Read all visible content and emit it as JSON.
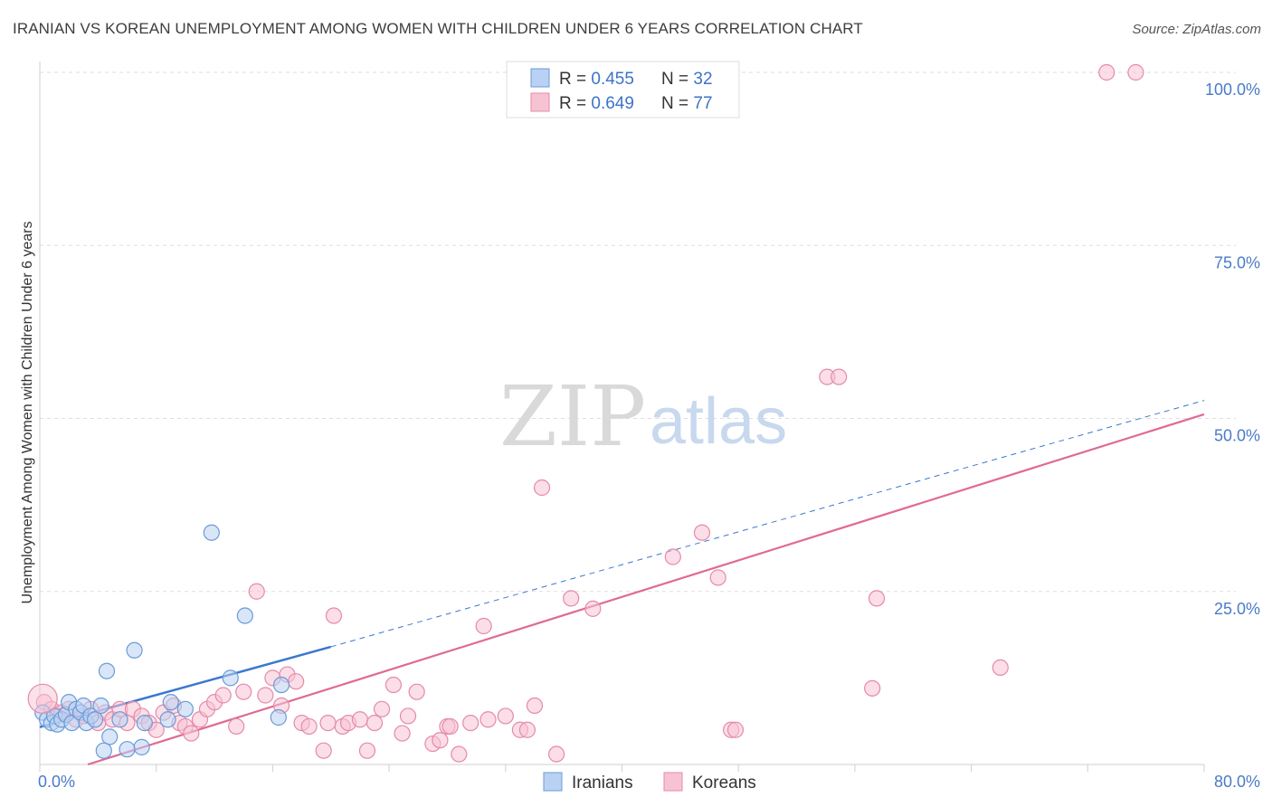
{
  "title": "IRANIAN VS KOREAN UNEMPLOYMENT AMONG WOMEN WITH CHILDREN UNDER 6 YEARS CORRELATION CHART",
  "source": "Source: ZipAtlas.com",
  "watermark": {
    "zip": "ZIP",
    "atlas": "atlas"
  },
  "colors": {
    "iranian_fill": "#b9d1f3",
    "iranian_stroke": "#6b9ad8",
    "iranian_line": "#3a78cf",
    "korean_fill": "#f7c3d3",
    "korean_stroke": "#e58aa8",
    "korean_line": "#e06a94",
    "grid": "#dddddd",
    "tick_text": "#4a7bc8"
  },
  "legend": {
    "rows": [
      {
        "r_label": "R = ",
        "r_value": "0.455",
        "n_label": "N = ",
        "n_value": "32"
      },
      {
        "r_label": "R = ",
        "r_value": "0.649",
        "n_label": "N = ",
        "n_value": "77"
      }
    ]
  },
  "bottom_legend": [
    "Iranians",
    "Koreans"
  ],
  "chart_data": {
    "type": "scatter",
    "title": "IRANIAN VS KOREAN UNEMPLOYMENT AMONG WOMEN WITH CHILDREN UNDER 6 YEARS CORRELATION CHART",
    "xlabel": "",
    "ylabel": "Unemployment Among Women with Children Under 6 years",
    "xlim": [
      0,
      80
    ],
    "ylim": [
      0,
      100
    ],
    "x_tick_labels": [
      "0.0%",
      "80.0%"
    ],
    "y_ticks": [
      25,
      50,
      75,
      100
    ],
    "y_tick_labels": [
      "25.0%",
      "50.0%",
      "75.0%",
      "100.0%"
    ],
    "grid": true,
    "series": [
      {
        "name": "Iranians",
        "r": 0.455,
        "n": 32,
        "trend": {
          "x0": 0,
          "y0": 5.4,
          "x1": 20,
          "y1": 17.0,
          "dashed_to_x": 80,
          "dashed_to_y": 52.6
        },
        "points": [
          [
            0.2,
            7.5
          ],
          [
            0.5,
            6.5
          ],
          [
            0.8,
            6.0
          ],
          [
            1.0,
            7.0
          ],
          [
            1.2,
            5.8
          ],
          [
            1.5,
            6.5
          ],
          [
            1.8,
            7.2
          ],
          [
            2.0,
            9.0
          ],
          [
            2.2,
            6.0
          ],
          [
            2.5,
            8.0
          ],
          [
            2.8,
            7.5
          ],
          [
            3.0,
            8.5
          ],
          [
            3.2,
            6.0
          ],
          [
            3.5,
            7.0
          ],
          [
            3.8,
            6.5
          ],
          [
            4.2,
            8.5
          ],
          [
            4.6,
            13.5
          ],
          [
            4.8,
            4.0
          ],
          [
            5.5,
            6.5
          ],
          [
            6.5,
            16.5
          ],
          [
            7.0,
            2.5
          ],
          [
            7.2,
            6.0
          ],
          [
            8.8,
            6.5
          ],
          [
            9.0,
            9.0
          ],
          [
            10.0,
            8.0
          ],
          [
            11.8,
            33.5
          ],
          [
            13.1,
            12.5
          ],
          [
            14.1,
            21.5
          ],
          [
            16.4,
            6.8
          ],
          [
            16.6,
            11.5
          ],
          [
            6.0,
            2.2
          ],
          [
            4.4,
            2.0
          ]
        ]
      },
      {
        "name": "Koreans",
        "r": 0.649,
        "n": 77,
        "trend": {
          "x0": 3.3,
          "y0": 0,
          "x1": 80,
          "y1": 50.6
        },
        "points": [
          [
            0.3,
            9.0
          ],
          [
            0.8,
            8.0
          ],
          [
            1.2,
            7.0
          ],
          [
            1.5,
            7.5
          ],
          [
            2.0,
            8.0
          ],
          [
            2.5,
            6.5
          ],
          [
            3.0,
            7.0
          ],
          [
            3.5,
            8.0
          ],
          [
            4.0,
            6.0
          ],
          [
            4.5,
            7.5
          ],
          [
            5.0,
            6.5
          ],
          [
            5.5,
            8.0
          ],
          [
            6.0,
            6.0
          ],
          [
            6.4,
            8.0
          ],
          [
            7.0,
            7.0
          ],
          [
            7.5,
            6.0
          ],
          [
            8.0,
            5.0
          ],
          [
            8.5,
            7.5
          ],
          [
            9.2,
            8.5
          ],
          [
            9.6,
            6.0
          ],
          [
            10.0,
            5.5
          ],
          [
            10.4,
            4.5
          ],
          [
            11.0,
            6.5
          ],
          [
            11.5,
            8.0
          ],
          [
            12.0,
            9.0
          ],
          [
            12.6,
            10.0
          ],
          [
            13.5,
            5.5
          ],
          [
            14.0,
            10.5
          ],
          [
            14.9,
            25.0
          ],
          [
            15.5,
            10.0
          ],
          [
            16.0,
            12.5
          ],
          [
            16.6,
            8.5
          ],
          [
            17.0,
            13.0
          ],
          [
            17.6,
            12.0
          ],
          [
            18.0,
            6.0
          ],
          [
            18.5,
            5.5
          ],
          [
            19.5,
            2.0
          ],
          [
            20.2,
            21.5
          ],
          [
            20.8,
            5.5
          ],
          [
            21.2,
            6.0
          ],
          [
            22.0,
            6.5
          ],
          [
            22.5,
            2.0
          ],
          [
            23.0,
            6.0
          ],
          [
            23.5,
            8.0
          ],
          [
            24.3,
            11.5
          ],
          [
            24.9,
            4.5
          ],
          [
            25.3,
            7.0
          ],
          [
            25.9,
            10.5
          ],
          [
            27.0,
            3.0
          ],
          [
            27.5,
            3.5
          ],
          [
            28.0,
            5.5
          ],
          [
            28.8,
            1.5
          ],
          [
            29.6,
            6.0
          ],
          [
            30.5,
            20.0
          ],
          [
            30.8,
            6.5
          ],
          [
            32.0,
            7.0
          ],
          [
            33.0,
            5.0
          ],
          [
            33.5,
            5.0
          ],
          [
            34.0,
            8.5
          ],
          [
            34.5,
            40.0
          ],
          [
            35.5,
            1.5
          ],
          [
            36.5,
            24.0
          ],
          [
            38.0,
            22.5
          ],
          [
            43.5,
            30.0
          ],
          [
            45.5,
            33.5
          ],
          [
            46.6,
            27.0
          ],
          [
            47.5,
            5.0
          ],
          [
            47.8,
            5.0
          ],
          [
            54.1,
            56.0
          ],
          [
            54.9,
            56.0
          ],
          [
            57.2,
            11.0
          ],
          [
            57.5,
            24.0
          ],
          [
            66.0,
            14.0
          ],
          [
            73.3,
            100.0
          ],
          [
            75.3,
            100.0
          ],
          [
            28.2,
            5.5
          ],
          [
            19.8,
            6.0
          ]
        ]
      }
    ]
  }
}
